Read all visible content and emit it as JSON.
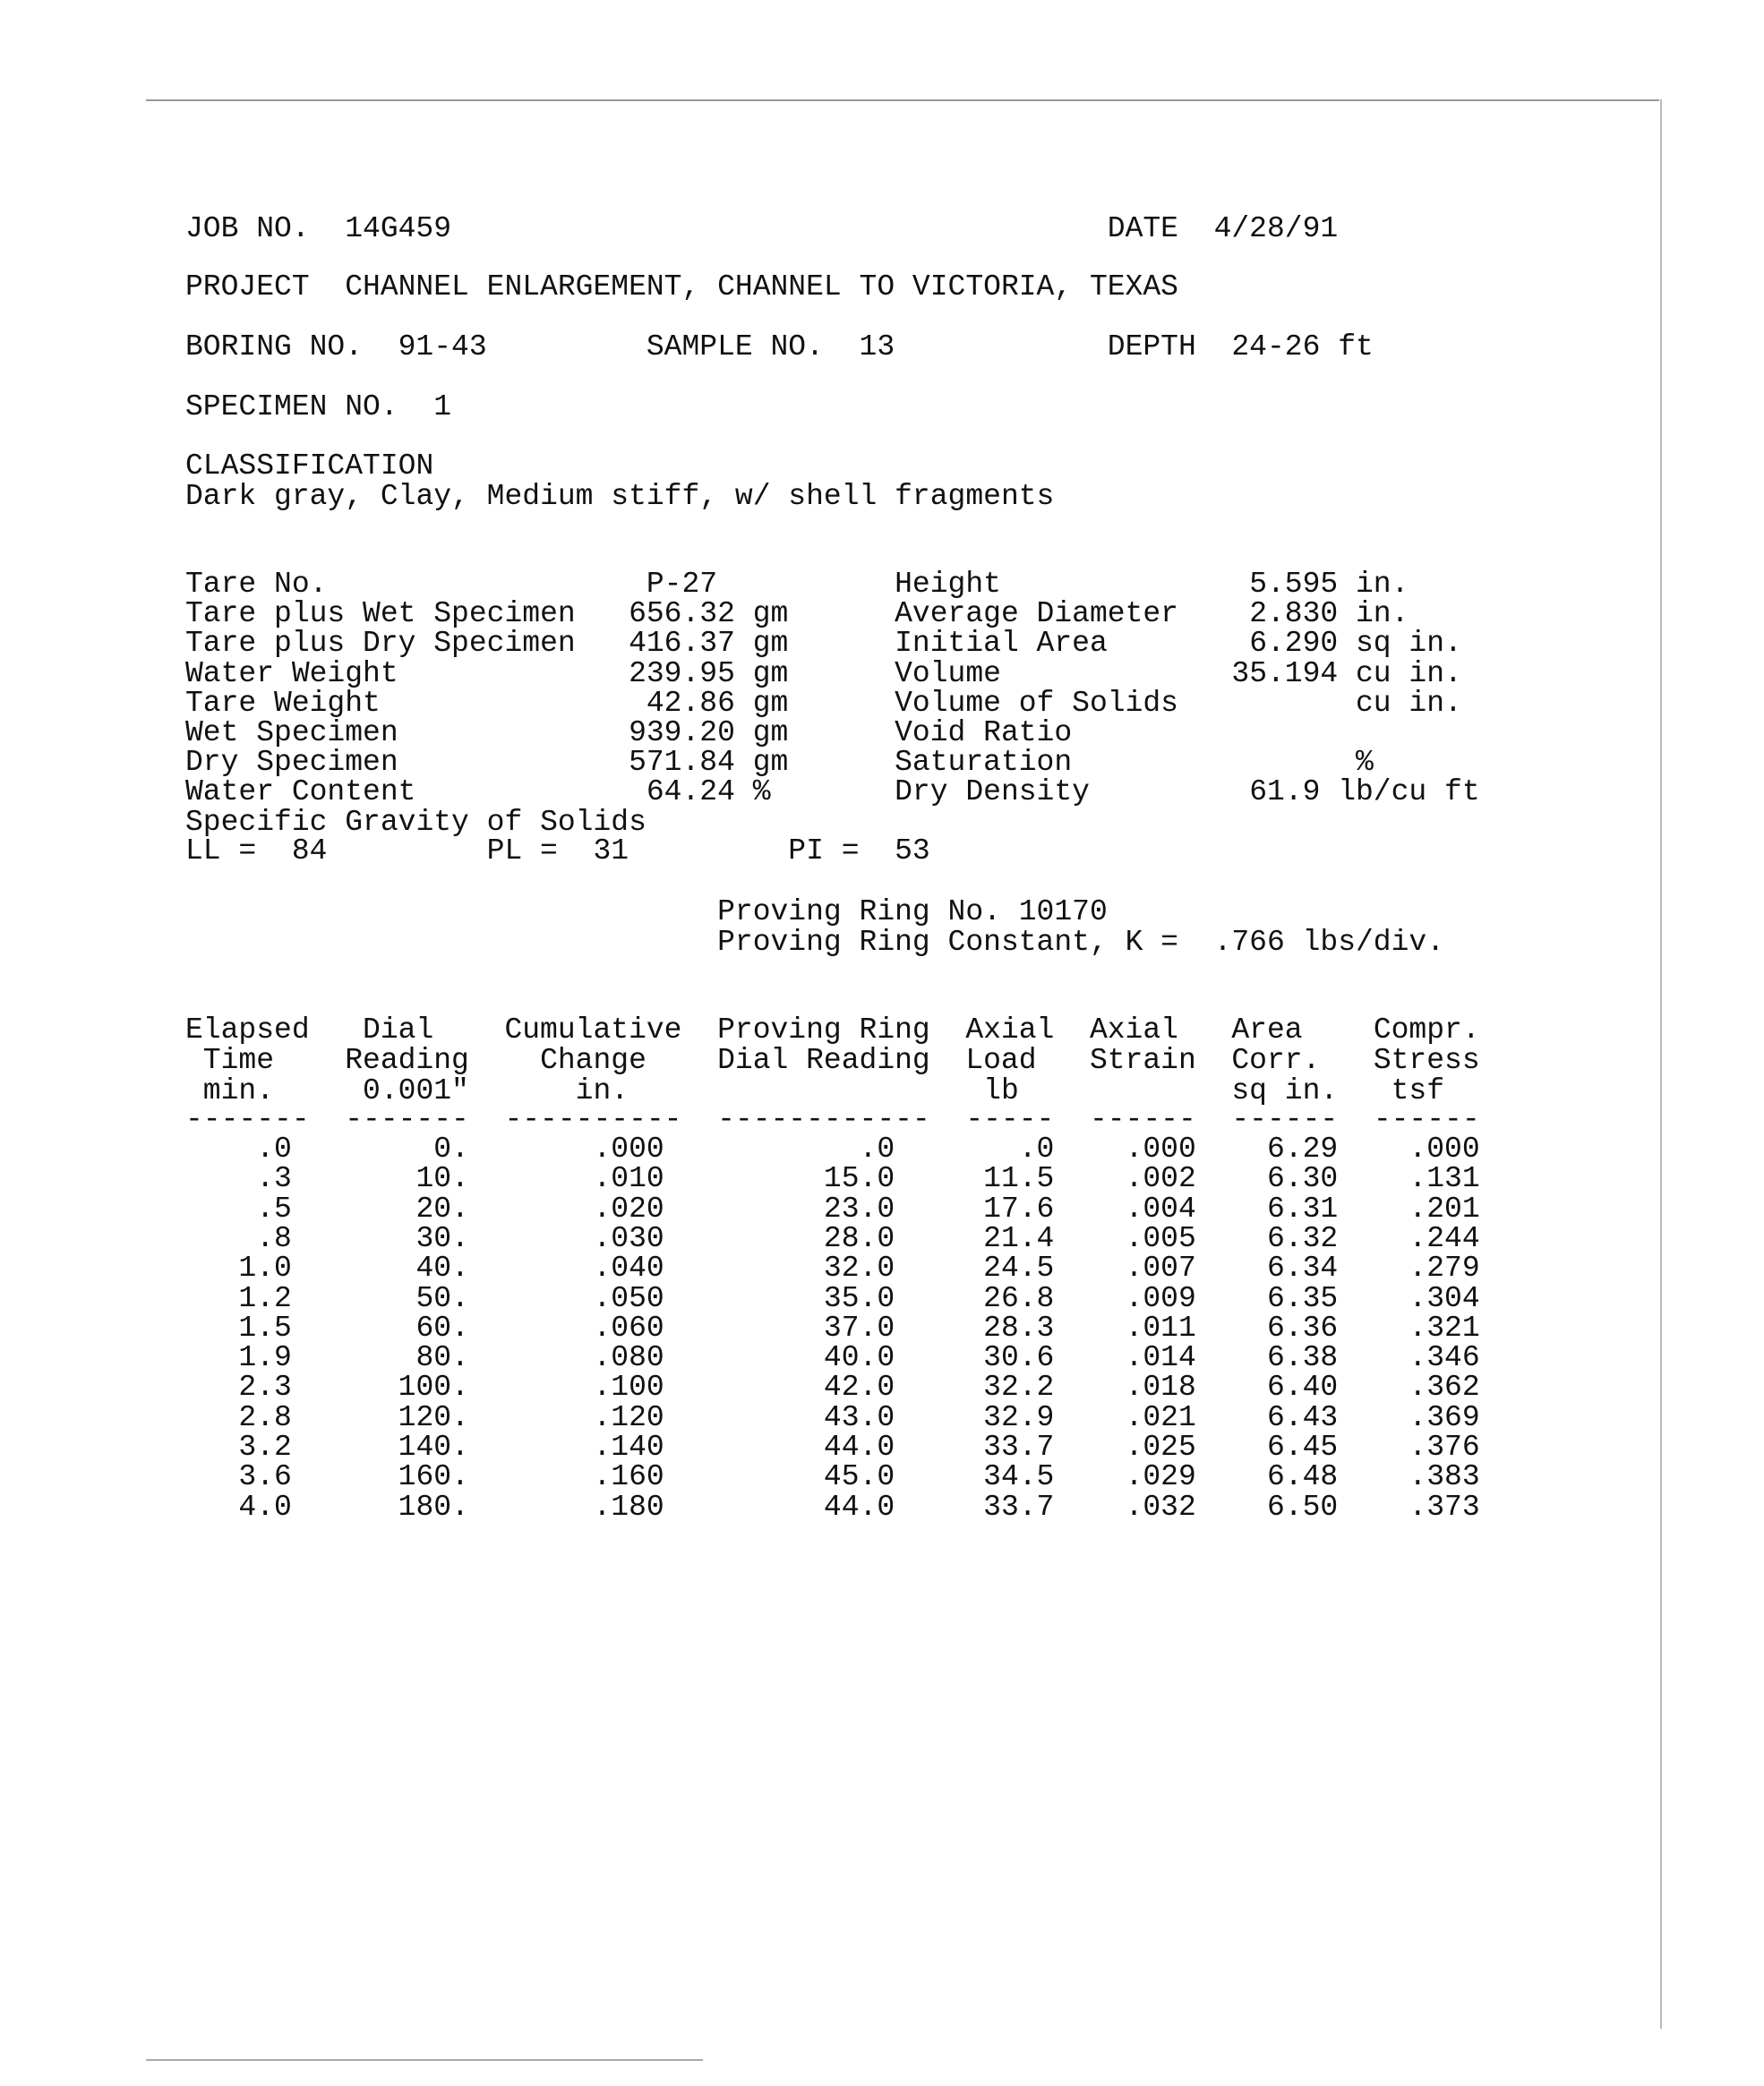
{
  "header": {
    "job_label": "JOB NO.",
    "job_no": "14G459",
    "date_label": "DATE",
    "date": "4/28/91",
    "project_label": "PROJECT",
    "project": "CHANNEL ENLARGEMENT, CHANNEL TO VICTORIA, TEXAS",
    "boring_label": "BORING NO.",
    "boring_no": "91-43",
    "sample_label": "SAMPLE NO.",
    "sample_no": "13",
    "depth_label": "DEPTH",
    "depth": "24-26 ft",
    "specimen_label": "SPECIMEN NO.",
    "specimen_no": "1",
    "classification_label": "CLASSIFICATION",
    "classification": "Dark gray, Clay, Medium stiff, w/ shell fragments"
  },
  "properties_left": [
    {
      "label": "Tare No.",
      "value": "P-27",
      "unit": ""
    },
    {
      "label": "Tare plus Wet Specimen",
      "value": "656.32",
      "unit": "gm"
    },
    {
      "label": "Tare plus Dry Specimen",
      "value": "416.37",
      "unit": "gm"
    },
    {
      "label": "Water Weight",
      "value": "239.95",
      "unit": "gm"
    },
    {
      "label": "Tare Weight",
      "value": "42.86",
      "unit": "gm"
    },
    {
      "label": "Wet Specimen",
      "value": "939.20",
      "unit": "gm"
    },
    {
      "label": "Dry Specimen",
      "value": "571.84",
      "unit": "gm"
    },
    {
      "label": "Water Content",
      "value": "64.24",
      "unit": "%"
    },
    {
      "label": "Specific Gravity of Solids",
      "value": "",
      "unit": ""
    }
  ],
  "properties_right": [
    {
      "label": "Height",
      "value": "5.595",
      "unit": "in."
    },
    {
      "label": "Average Diameter",
      "value": "2.830",
      "unit": "in."
    },
    {
      "label": "Initial Area",
      "value": "6.290",
      "unit": "sq in."
    },
    {
      "label": "Volume",
      "value": "35.194",
      "unit": "cu in."
    },
    {
      "label": "Volume of Solids",
      "value": "",
      "unit": "cu in."
    },
    {
      "label": "Void Ratio",
      "value": "",
      "unit": ""
    },
    {
      "label": "Saturation",
      "value": "",
      "unit": "%"
    },
    {
      "label": "Dry Density",
      "value": "61.9",
      "unit": "lb/cu ft"
    }
  ],
  "limits": {
    "ll_label": "LL =",
    "ll": "84",
    "pl_label": "PL =",
    "pl": "31",
    "pi_label": "PI =",
    "pi": "53"
  },
  "proving_ring": {
    "no_text": "Proving Ring No. 10170",
    "constant_label": "Proving Ring Constant, K =",
    "constant": ".766 lbs/div."
  },
  "table": {
    "headers": [
      [
        "Elapsed",
        "Time",
        "min."
      ],
      [
        "Dial",
        "Reading",
        "0.001\""
      ],
      [
        "Cumulative",
        "Change",
        "in."
      ],
      [
        "Proving Ring",
        "Dial Reading",
        ""
      ],
      [
        "Axial",
        "Load",
        "lb"
      ],
      [
        "Axial",
        "Strain",
        ""
      ],
      [
        "Area",
        "Corr.",
        "sq in."
      ],
      [
        "Compr.",
        "Stress",
        "tsf"
      ]
    ],
    "dashes": [
      "-------",
      "-------",
      "----------",
      "------------",
      "-----",
      "------",
      "------",
      "------"
    ],
    "rows": [
      [
        ".0",
        "0.",
        ".000",
        ".0",
        ".0",
        ".000",
        "6.29",
        ".000"
      ],
      [
        ".3",
        "10.",
        ".010",
        "15.0",
        "11.5",
        ".002",
        "6.30",
        ".131"
      ],
      [
        ".5",
        "20.",
        ".020",
        "23.0",
        "17.6",
        ".004",
        "6.31",
        ".201"
      ],
      [
        ".8",
        "30.",
        ".030",
        "28.0",
        "21.4",
        ".005",
        "6.32",
        ".244"
      ],
      [
        "1.0",
        "40.",
        ".040",
        "32.0",
        "24.5",
        ".007",
        "6.34",
        ".279"
      ],
      [
        "1.2",
        "50.",
        ".050",
        "35.0",
        "26.8",
        ".009",
        "6.35",
        ".304"
      ],
      [
        "1.5",
        "60.",
        ".060",
        "37.0",
        "28.3",
        ".011",
        "6.36",
        ".321"
      ],
      [
        "1.9",
        "80.",
        ".080",
        "40.0",
        "30.6",
        ".014",
        "6.38",
        ".346"
      ],
      [
        "2.3",
        "100.",
        ".100",
        "42.0",
        "32.2",
        ".018",
        "6.40",
        ".362"
      ],
      [
        "2.8",
        "120.",
        ".120",
        "43.0",
        "32.9",
        ".021",
        "6.43",
        ".369"
      ],
      [
        "3.2",
        "140.",
        ".140",
        "44.0",
        "33.7",
        ".025",
        "6.45",
        ".376"
      ],
      [
        "3.6",
        "160.",
        ".160",
        "45.0",
        "34.5",
        ".029",
        "6.48",
        ".383"
      ],
      [
        "4.0",
        "180.",
        ".180",
        "44.0",
        "33.7",
        ".032",
        "6.50",
        ".373"
      ]
    ]
  }
}
